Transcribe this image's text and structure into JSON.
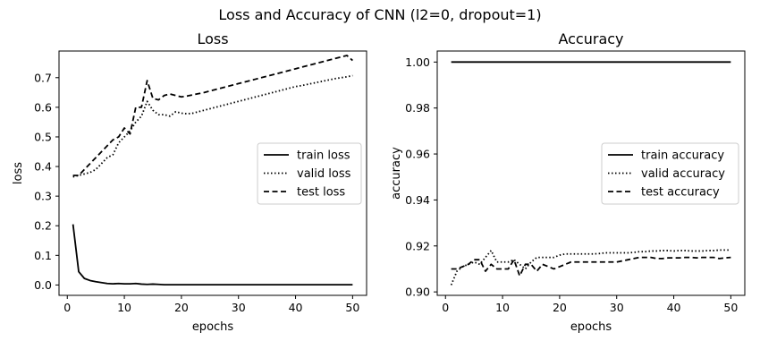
{
  "suptitle": "Loss and Accuracy of CNN (l2=0, dropout=1)",
  "chart_data": [
    {
      "type": "line",
      "title": "Loss",
      "xlabel": "epochs",
      "ylabel": "loss",
      "xlim": [
        -1.45,
        52.45
      ],
      "ylim": [
        -0.035,
        0.79
      ],
      "xticks": [
        0,
        10,
        20,
        30,
        40,
        50
      ],
      "yticks": [
        0.0,
        0.1,
        0.2,
        0.3,
        0.4,
        0.5,
        0.6,
        0.7
      ],
      "ytick_labels": [
        "0.0",
        "0.1",
        "0.2",
        "0.3",
        "0.4",
        "0.5",
        "0.6",
        "0.7"
      ],
      "grid": false,
      "legend_position": "center right",
      "x": [
        1,
        2,
        3,
        4,
        5,
        6,
        7,
        8,
        9,
        10,
        11,
        12,
        13,
        14,
        15,
        16,
        17,
        18,
        19,
        20,
        21,
        22,
        23,
        24,
        25,
        26,
        27,
        28,
        29,
        30,
        31,
        32,
        33,
        34,
        35,
        36,
        37,
        38,
        39,
        40,
        41,
        42,
        43,
        44,
        45,
        46,
        47,
        48,
        49,
        50
      ],
      "series": [
        {
          "name": "train loss",
          "style": "solid",
          "color": "#000000",
          "values": [
            0.205,
            0.045,
            0.022,
            0.015,
            0.011,
            0.008,
            0.005,
            0.004,
            0.005,
            0.004,
            0.004,
            0.005,
            0.003,
            0.002,
            0.003,
            0.002,
            0.001,
            0.001,
            0.001,
            0.001,
            0.001,
            0.001,
            0.001,
            0.001,
            0.001,
            0.001,
            0.001,
            0.001,
            0.001,
            0.001,
            0.001,
            0.001,
            0.001,
            0.001,
            0.001,
            0.001,
            0.001,
            0.001,
            0.001,
            0.001,
            0.001,
            0.001,
            0.001,
            0.001,
            0.001,
            0.001,
            0.001,
            0.001,
            0.001,
            0.001
          ]
        },
        {
          "name": "valid loss",
          "style": "dotted",
          "color": "#000000",
          "values": [
            0.365,
            0.37,
            0.375,
            0.38,
            0.39,
            0.41,
            0.43,
            0.44,
            0.48,
            0.5,
            0.52,
            0.55,
            0.57,
            0.62,
            0.59,
            0.575,
            0.575,
            0.57,
            0.585,
            0.58,
            0.578,
            0.58,
            0.585,
            0.59,
            0.595,
            0.6,
            0.605,
            0.61,
            0.615,
            0.62,
            0.625,
            0.63,
            0.635,
            0.64,
            0.645,
            0.65,
            0.655,
            0.66,
            0.665,
            0.67,
            0.673,
            0.677,
            0.681,
            0.685,
            0.689,
            0.693,
            0.697,
            0.7,
            0.703,
            0.707
          ]
        },
        {
          "name": "test loss",
          "style": "dashed",
          "color": "#000000",
          "values": [
            0.37,
            0.37,
            0.39,
            0.41,
            0.43,
            0.45,
            0.47,
            0.49,
            0.5,
            0.53,
            0.51,
            0.6,
            0.6,
            0.69,
            0.63,
            0.625,
            0.64,
            0.645,
            0.64,
            0.635,
            0.638,
            0.642,
            0.646,
            0.65,
            0.655,
            0.66,
            0.665,
            0.67,
            0.675,
            0.68,
            0.685,
            0.69,
            0.695,
            0.7,
            0.705,
            0.71,
            0.715,
            0.72,
            0.725,
            0.73,
            0.735,
            0.74,
            0.745,
            0.75,
            0.755,
            0.76,
            0.765,
            0.77,
            0.775,
            0.758
          ]
        }
      ]
    },
    {
      "type": "line",
      "title": "Accuracy",
      "xlabel": "epochs",
      "ylabel": "accuracy",
      "xlim": [
        -1.45,
        52.45
      ],
      "ylim": [
        0.8985,
        1.0048
      ],
      "xticks": [
        0,
        10,
        20,
        30,
        40,
        50
      ],
      "yticks": [
        0.9,
        0.92,
        0.94,
        0.96,
        0.98,
        1.0
      ],
      "ytick_labels": [
        "0.90",
        "0.92",
        "0.94",
        "0.96",
        "0.98",
        "1.00"
      ],
      "grid": false,
      "legend_position": "center right",
      "x": [
        1,
        2,
        3,
        4,
        5,
        6,
        7,
        8,
        9,
        10,
        11,
        12,
        13,
        14,
        15,
        16,
        17,
        18,
        19,
        20,
        21,
        22,
        23,
        24,
        25,
        26,
        27,
        28,
        29,
        30,
        31,
        32,
        33,
        34,
        35,
        36,
        37,
        38,
        39,
        40,
        41,
        42,
        43,
        44,
        45,
        46,
        47,
        48,
        49,
        50
      ],
      "series": [
        {
          "name": "train accuracy",
          "style": "solid",
          "color": "#000000",
          "values": [
            1.0,
            1.0,
            1.0,
            1.0,
            1.0,
            1.0,
            1.0,
            1.0,
            1.0,
            1.0,
            1.0,
            1.0,
            1.0,
            1.0,
            1.0,
            1.0,
            1.0,
            1.0,
            1.0,
            1.0,
            1.0,
            1.0,
            1.0,
            1.0,
            1.0,
            1.0,
            1.0,
            1.0,
            1.0,
            1.0,
            1.0,
            1.0,
            1.0,
            1.0,
            1.0,
            1.0,
            1.0,
            1.0,
            1.0,
            1.0,
            1.0,
            1.0,
            1.0,
            1.0,
            1.0,
            1.0,
            1.0,
            1.0,
            1.0,
            1.0
          ]
        },
        {
          "name": "valid accuracy",
          "style": "dotted",
          "color": "#000000",
          "values": [
            0.903,
            0.909,
            0.911,
            0.912,
            0.913,
            0.912,
            0.915,
            0.918,
            0.913,
            0.913,
            0.913,
            0.914,
            0.912,
            0.91,
            0.913,
            0.915,
            0.915,
            0.915,
            0.915,
            0.916,
            0.9165,
            0.9165,
            0.9165,
            0.9165,
            0.9165,
            0.9165,
            0.9167,
            0.917,
            0.917,
            0.917,
            0.917,
            0.917,
            0.9172,
            0.9175,
            0.9175,
            0.9178,
            0.9178,
            0.918,
            0.918,
            0.9178,
            0.918,
            0.918,
            0.9178,
            0.9178,
            0.9178,
            0.918,
            0.918,
            0.9182,
            0.9182,
            0.9182
          ]
        },
        {
          "name": "test accuracy",
          "style": "dashed",
          "color": "#000000",
          "values": [
            0.91,
            0.91,
            0.911,
            0.912,
            0.914,
            0.914,
            0.909,
            0.912,
            0.91,
            0.91,
            0.91,
            0.914,
            0.907,
            0.912,
            0.912,
            0.909,
            0.912,
            0.911,
            0.91,
            0.911,
            0.912,
            0.913,
            0.913,
            0.913,
            0.913,
            0.913,
            0.913,
            0.913,
            0.913,
            0.913,
            0.9135,
            0.914,
            0.9145,
            0.915,
            0.915,
            0.915,
            0.9145,
            0.9145,
            0.9148,
            0.9148,
            0.9148,
            0.915,
            0.915,
            0.9148,
            0.915,
            0.915,
            0.915,
            0.9145,
            0.9148,
            0.915
          ]
        }
      ]
    }
  ]
}
